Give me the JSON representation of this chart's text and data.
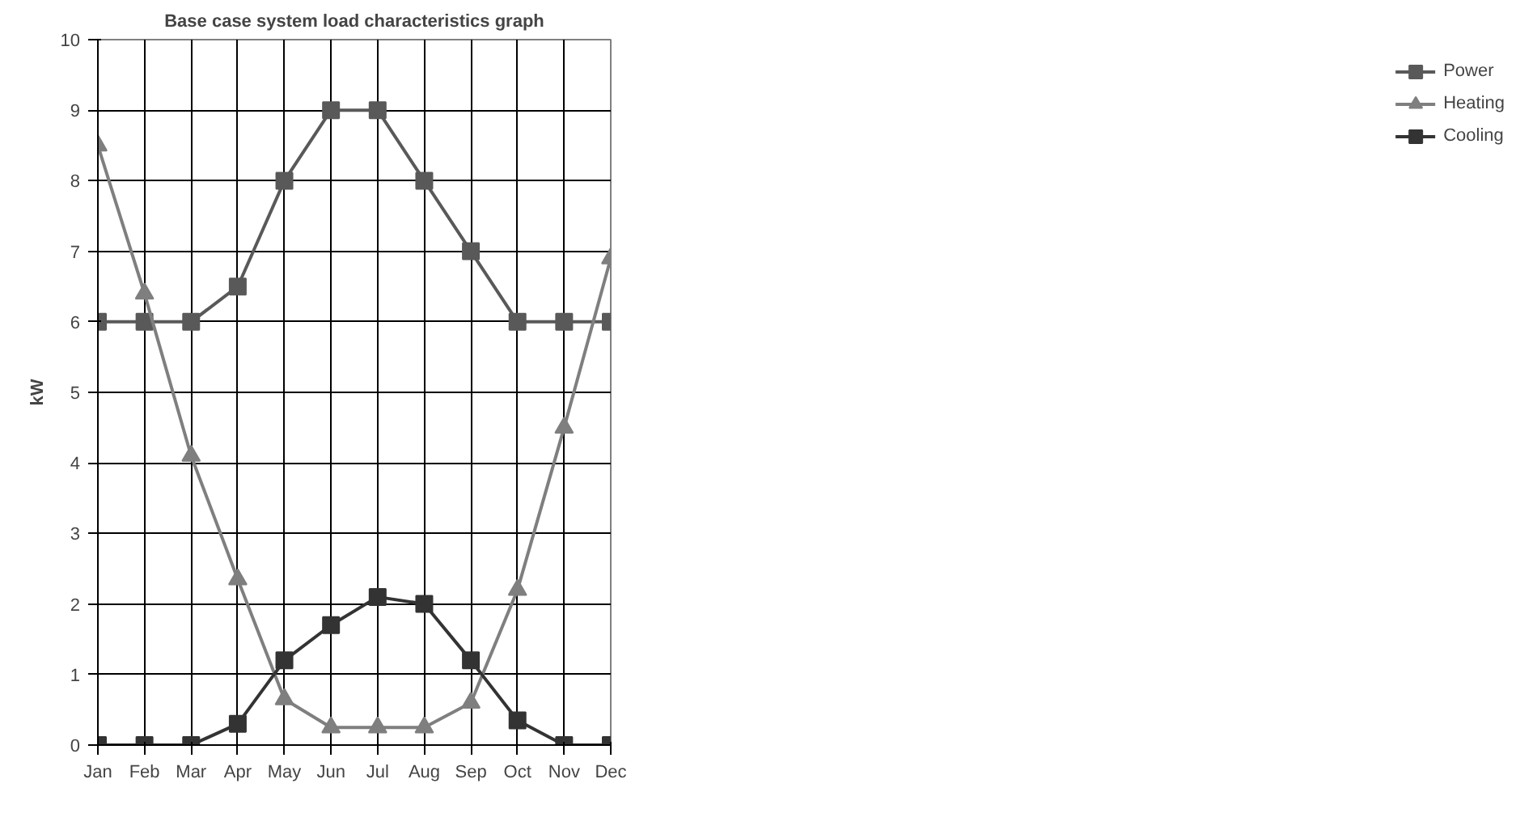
{
  "chart_data": {
    "type": "line",
    "title": "Base case system load characteristics graph",
    "ylabel": "kW",
    "categories": [
      "Jan",
      "Feb",
      "Mar",
      "Apr",
      "May",
      "Jun",
      "Jul",
      "Aug",
      "Sep",
      "Oct",
      "Nov",
      "Dec"
    ],
    "series": [
      {
        "name": "Power",
        "color": "#595959",
        "marker": "square",
        "values": [
          6,
          6,
          6,
          6.5,
          8,
          9,
          9,
          8,
          7,
          6,
          6,
          6
        ]
      },
      {
        "name": "Heating",
        "color": "#7f7f7f",
        "marker": "triangle",
        "values": [
          8.5,
          6.4,
          4.1,
          2.35,
          0.65,
          0.25,
          0.25,
          0.25,
          0.6,
          2.2,
          4.5,
          6.9
        ]
      },
      {
        "name": "Cooling",
        "color": "#333333",
        "marker": "square",
        "values": [
          0,
          0,
          0,
          0.3,
          1.2,
          1.7,
          2.1,
          2.0,
          1.2,
          0.35,
          0,
          0
        ]
      }
    ],
    "ylim": [
      0,
      10
    ],
    "yticks": [
      0,
      1,
      2,
      3,
      4,
      5,
      6,
      7,
      8,
      9,
      10
    ],
    "grid": true,
    "legend": "right"
  }
}
